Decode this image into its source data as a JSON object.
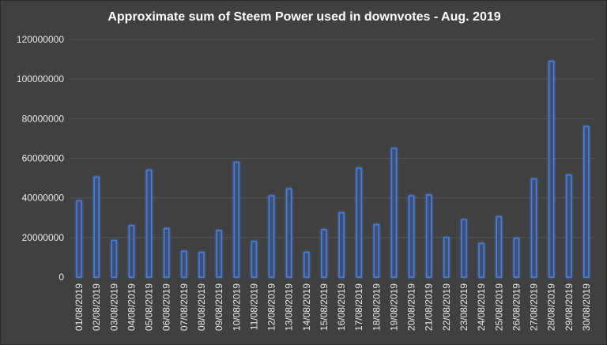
{
  "chart_data": {
    "type": "bar",
    "title": "Approximate sum of Steem Power used in downvotes - Aug. 2019",
    "xlabel": "",
    "ylabel": "",
    "ylim": [
      0,
      120000000
    ],
    "yticks": [
      "0",
      "20000000",
      "40000000",
      "60000000",
      "80000000",
      "100000000",
      "120000000"
    ],
    "grid": true,
    "categories": [
      "01/08/2019",
      "02/08/2019",
      "03/08/2019",
      "04/08/2019",
      "05/08/2019",
      "06/08/2019",
      "07/08/2019",
      "08/08/2019",
      "09/08/2019",
      "10/08/2019",
      "11/08/2019",
      "12/08/2019",
      "13/08/2019",
      "14/08/2019",
      "15/08/2019",
      "16/08/2019",
      "17/08/2019",
      "18/08/2019",
      "19/08/2019",
      "20/08/2019",
      "21/08/2019",
      "22/08/2019",
      "23/08/2019",
      "24/08/2019",
      "25/08/2019",
      "26/08/2019",
      "27/08/2019",
      "28/08/2019",
      "29/08/2019",
      "30/08/2019"
    ],
    "values": [
      38500000,
      50500000,
      18500000,
      26000000,
      54000000,
      24500000,
      13000000,
      12500000,
      23500000,
      58000000,
      18000000,
      41000000,
      44500000,
      12500000,
      24000000,
      32500000,
      55000000,
      26500000,
      65000000,
      41000000,
      41500000,
      20000000,
      29000000,
      17000000,
      30500000,
      19500000,
      49500000,
      109000000,
      51500000,
      76000000
    ],
    "colors": {
      "bar_edge": "#4a7fe0",
      "bar_fill": "#3d4f73",
      "background": "#404040",
      "grid": "#555555"
    }
  }
}
